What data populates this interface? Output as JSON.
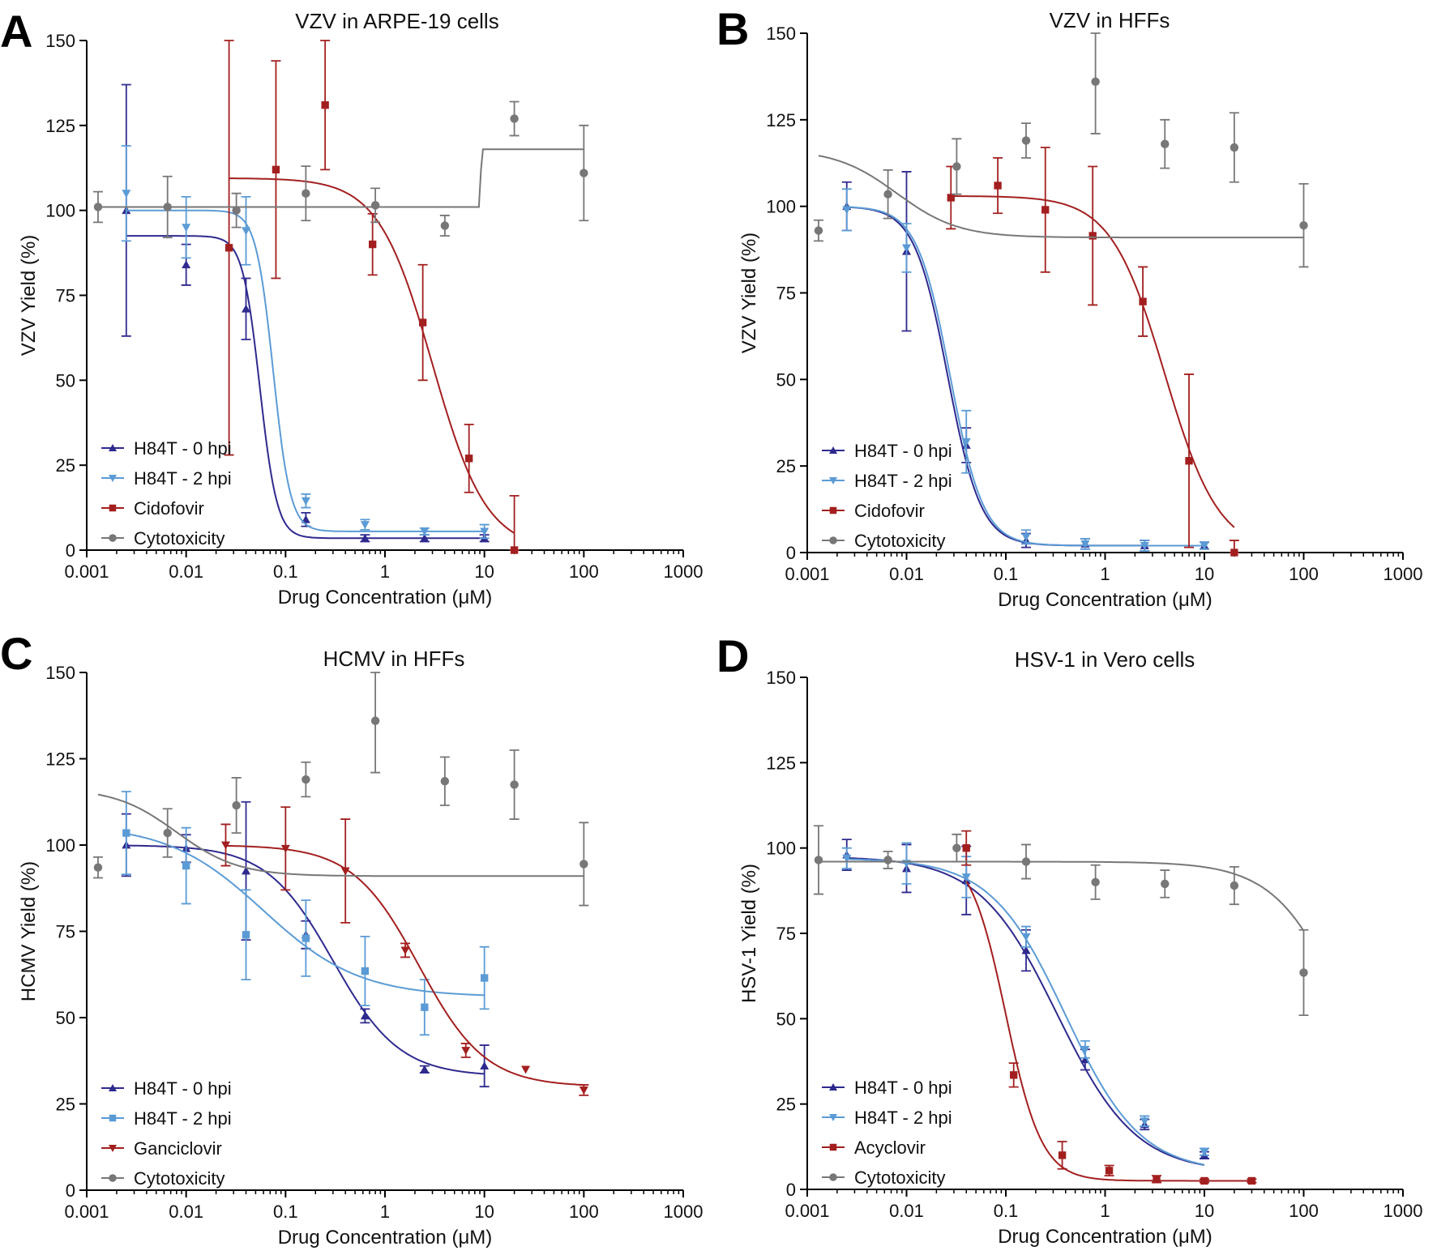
{
  "chart_data": [
    {
      "panel_label": "A",
      "type": "scatter",
      "title": "VZV in ARPE-19 cells",
      "xlabel": "Drug Concentration (μM)",
      "ylabel": "VZV Yield (%)",
      "xscale": "log",
      "xlim": [
        0.001,
        1000
      ],
      "ylim": [
        0,
        150
      ],
      "xticks": [
        0.001,
        0.01,
        0.1,
        1,
        10,
        100,
        1000
      ],
      "xtick_labels": [
        "0.001",
        "0.01",
        "0.1",
        "1",
        "10",
        "100",
        "1000"
      ],
      "yticks": [
        0,
        25,
        50,
        75,
        100,
        125,
        150
      ],
      "ytick_labels": [
        "0",
        "25",
        "50",
        "75",
        "100",
        "125",
        "150"
      ],
      "legend_position": "bottom-left",
      "series": [
        {
          "name": "H84T - 0 hpi",
          "color": "#2e2a8e",
          "marker": "triangle-up",
          "points": [
            [
              0.0025,
              100,
              37
            ],
            [
              0.01,
              84,
              6
            ],
            [
              0.04,
              71,
              9
            ],
            [
              0.16,
              9,
              2
            ],
            [
              0.63,
              3.5,
              1
            ],
            [
              2.5,
              3.5,
              1
            ],
            [
              10,
              3.5,
              1
            ]
          ],
          "curve": {
            "top": 92.5,
            "bottom": 3.5,
            "ec50": 0.055,
            "hill": 5,
            "from": 0.0025,
            "to": 10
          }
        },
        {
          "name": "H84T - 2 hpi",
          "color": "#5b9bd5",
          "marker": "triangle-down",
          "points": [
            [
              0.0025,
              105,
              14
            ],
            [
              0.01,
              95,
              9
            ],
            [
              0.04,
              94,
              10
            ],
            [
              0.16,
              14.5,
              2
            ],
            [
              0.63,
              7.5,
              1.5
            ],
            [
              2.5,
              5.5,
              1
            ],
            [
              10,
              5.5,
              2
            ]
          ],
          "curve": {
            "top": 100,
            "bottom": 5.5,
            "ec50": 0.075,
            "hill": 5,
            "from": 0.0025,
            "to": 10
          }
        },
        {
          "name": "Cidofovir",
          "color": "#a31f1f",
          "marker": "square",
          "points": [
            [
              0.027,
              89,
              61
            ],
            [
              0.08,
              112,
              32
            ],
            [
              0.25,
              131,
              19
            ],
            [
              0.75,
              90,
              9
            ],
            [
              2.4,
              67,
              17
            ],
            [
              7,
              27,
              10
            ],
            [
              20,
              0,
              16
            ]
          ],
          "curve": {
            "top": 109.5,
            "bottom": 0,
            "ec50": 3.0,
            "hill": 1.6,
            "from": 0.027,
            "to": 20
          }
        },
        {
          "name": "Cytotoxicity",
          "color": "#777777",
          "marker": "circle",
          "points": [
            [
              0.0013,
              101,
              4.5
            ],
            [
              0.0065,
              101,
              9
            ],
            [
              0.032,
              100,
              5
            ],
            [
              0.16,
              105,
              8
            ],
            [
              0.8,
              101.5,
              5
            ],
            [
              4,
              95.5,
              3
            ],
            [
              20,
              127,
              5
            ],
            [
              100,
              111,
              14
            ]
          ],
          "curve": {
            "type": "step",
            "low": 101,
            "high": 118,
            "rise_start": 8.8,
            "rise_end": 9.5,
            "from": 0.0013,
            "to": 100
          }
        }
      ]
    },
    {
      "panel_label": "B",
      "type": "scatter",
      "title": "VZV in HFFs",
      "xlabel": "Drug Concentration (μM)",
      "ylabel": "VZV Yield (%)",
      "xscale": "log",
      "xlim": [
        0.001,
        1000
      ],
      "ylim": [
        0,
        150
      ],
      "xticks": [
        0.001,
        0.01,
        0.1,
        1,
        10,
        100,
        1000
      ],
      "xtick_labels": [
        "0.001",
        "0.01",
        "0.1",
        "1",
        "10",
        "100",
        "1000"
      ],
      "yticks": [
        0,
        25,
        50,
        75,
        100,
        125,
        150
      ],
      "ytick_labels": [
        "0",
        "25",
        "50",
        "75",
        "100",
        "125",
        "150"
      ],
      "legend_position": "bottom-left",
      "series": [
        {
          "name": "H84T - 0 hpi",
          "color": "#2e2a8e",
          "marker": "triangle-up",
          "points": [
            [
              0.0025,
              100,
              7
            ],
            [
              0.01,
              87,
              23
            ],
            [
              0.04,
              31,
              5
            ],
            [
              0.16,
              3.5,
              2
            ],
            [
              0.63,
              2.5,
              1.5
            ],
            [
              2.5,
              2,
              1.5
            ],
            [
              10,
              2,
              1
            ]
          ],
          "curve": {
            "top": 100,
            "bottom": 2,
            "ec50": 0.026,
            "hill": 2.6,
            "from": 0.0025,
            "to": 10
          }
        },
        {
          "name": "H84T - 2 hpi",
          "color": "#5b9bd5",
          "marker": "triangle-down",
          "points": [
            [
              0.0025,
              99,
              6
            ],
            [
              0.01,
              88,
              7
            ],
            [
              0.04,
              32,
              9
            ],
            [
              0.16,
              4.5,
              2
            ],
            [
              0.63,
              2.5,
              1.5
            ],
            [
              2.5,
              2,
              1.5
            ],
            [
              10,
              2,
              1
            ]
          ],
          "curve": {
            "top": 100,
            "bottom": 2,
            "ec50": 0.0275,
            "hill": 2.6,
            "from": 0.0025,
            "to": 10
          }
        },
        {
          "name": "Cidofovir",
          "color": "#a31f1f",
          "marker": "square",
          "points": [
            [
              0.028,
              102.5,
              9
            ],
            [
              0.083,
              106,
              8
            ],
            [
              0.25,
              99,
              18
            ],
            [
              0.75,
              91.5,
              20
            ],
            [
              2.4,
              72.5,
              10
            ],
            [
              7,
              26.5,
              25
            ],
            [
              20,
              0,
              3.5
            ]
          ],
          "curve": {
            "top": 103,
            "bottom": 0,
            "ec50": 4.0,
            "hill": 1.6,
            "from": 0.028,
            "to": 20
          }
        },
        {
          "name": "Cytotoxicity",
          "color": "#777777",
          "marker": "circle",
          "points": [
            [
              0.0013,
              93,
              3
            ],
            [
              0.0065,
              103.5,
              7
            ],
            [
              0.032,
              111.5,
              8
            ],
            [
              0.16,
              119,
              5
            ],
            [
              0.8,
              136,
              15
            ],
            [
              4,
              118,
              7
            ],
            [
              20,
              117,
              10
            ],
            [
              100,
              94.5,
              12
            ]
          ],
          "curve": {
            "top": 116.5,
            "bottom": 91,
            "ec50": 0.008,
            "hill": 1.4,
            "from": 0.0013,
            "to": 100
          }
        }
      ]
    },
    {
      "panel_label": "C",
      "type": "scatter",
      "title": "HCMV in HFFs",
      "xlabel": "Drug Concentration (μM)",
      "ylabel": "HCMV Yield (%)",
      "xscale": "log",
      "xlim": [
        0.001,
        1000
      ],
      "ylim": [
        0,
        150
      ],
      "xticks": [
        0.001,
        0.01,
        0.1,
        1,
        10,
        100,
        1000
      ],
      "xtick_labels": [
        "0.001",
        "0.01",
        "0.1",
        "1",
        "10",
        "100",
        "1000"
      ],
      "yticks": [
        0,
        25,
        50,
        75,
        100,
        125,
        150
      ],
      "ytick_labels": [
        "0",
        "25",
        "50",
        "75",
        "100",
        "125",
        "150"
      ],
      "legend_position": "bottom-left",
      "series": [
        {
          "name": "H84T - 0 hpi",
          "color": "#2e2a8e",
          "marker": "triangle-up",
          "points": [
            [
              0.0025,
              100,
              9
            ],
            [
              0.01,
              99,
              4
            ],
            [
              0.04,
              92.5,
              20
            ],
            [
              0.16,
              74,
              4
            ],
            [
              0.63,
              50.5,
              2
            ],
            [
              2.5,
              35,
              1
            ],
            [
              10,
              36,
              6
            ]
          ],
          "curve": {
            "top": 100,
            "bottom": 33,
            "ec50": 0.3,
            "hill": 1.3,
            "from": 0.0025,
            "to": 10
          }
        },
        {
          "name": "H84T - 2 hpi",
          "color": "#5b9bd5",
          "marker": "square",
          "points": [
            [
              0.0025,
              103.5,
              12
            ],
            [
              0.01,
              94,
              11
            ],
            [
              0.04,
              74,
              13
            ],
            [
              0.16,
              73,
              11
            ],
            [
              0.63,
              63.5,
              10
            ],
            [
              2.5,
              53,
              8
            ],
            [
              10,
              61.5,
              9
            ]
          ],
          "curve": {
            "top": 106,
            "bottom": 56,
            "ec50": 0.06,
            "hill": 0.9,
            "from": 0.0025,
            "to": 10
          }
        },
        {
          "name": "Ganciclovir",
          "color": "#a31f1f",
          "marker": "triangle-down",
          "points": [
            [
              0.025,
              100,
              6
            ],
            [
              0.1,
              99,
              12
            ],
            [
              0.4,
              92.5,
              15
            ],
            [
              1.6,
              69.5,
              2
            ],
            [
              6.5,
              40.5,
              2
            ],
            [
              26,
              35,
              0
            ],
            [
              100,
              29,
              1.5
            ]
          ],
          "curve": {
            "top": 100,
            "bottom": 30,
            "ec50": 2.2,
            "hill": 1.3,
            "from": 0.025,
            "to": 100
          }
        },
        {
          "name": "Cytotoxicity",
          "color": "#777777",
          "marker": "circle",
          "points": [
            [
              0.0013,
              93.5,
              3
            ],
            [
              0.0065,
              103.5,
              7
            ],
            [
              0.032,
              111.5,
              8
            ],
            [
              0.16,
              119,
              5
            ],
            [
              0.8,
              136,
              15
            ],
            [
              4,
              118.5,
              7
            ],
            [
              20,
              117.5,
              10
            ],
            [
              100,
              94.5,
              12
            ]
          ],
          "curve": {
            "top": 116.5,
            "bottom": 91,
            "ec50": 0.008,
            "hill": 1.4,
            "from": 0.0013,
            "to": 100
          }
        }
      ]
    },
    {
      "panel_label": "D",
      "type": "scatter",
      "title": "HSV-1 in Vero cells",
      "xlabel": "Drug Concentration (μM)",
      "ylabel": "HSV-1 Yield (%)",
      "xscale": "log",
      "xlim": [
        0.001,
        1000
      ],
      "ylim": [
        0,
        150
      ],
      "xticks": [
        0.001,
        0.01,
        0.1,
        1,
        10,
        100,
        1000
      ],
      "xtick_labels": [
        "0.001",
        "0.01",
        "0.1",
        "1",
        "10",
        "100",
        "1000"
      ],
      "yticks": [
        0,
        25,
        50,
        75,
        100,
        125,
        150
      ],
      "ytick_labels": [
        "0",
        "25",
        "50",
        "75",
        "100",
        "125",
        "150"
      ],
      "legend_position": "bottom-left",
      "series": [
        {
          "name": "H84T - 0 hpi",
          "color": "#2e2a8e",
          "marker": "triangle-up",
          "points": [
            [
              0.0025,
              98,
              4.5
            ],
            [
              0.01,
              94,
              7
            ],
            [
              0.04,
              90.5,
              10
            ],
            [
              0.16,
              70,
              6
            ],
            [
              0.63,
              38,
              3
            ],
            [
              2.5,
              19,
              1.5
            ],
            [
              10,
              10,
              1
            ]
          ],
          "curve": {
            "top": 97.5,
            "bottom": 5,
            "ec50": 0.33,
            "hill": 1.1,
            "from": 0.0025,
            "to": 10
          }
        },
        {
          "name": "H84T - 2 hpi",
          "color": "#5b9bd5",
          "marker": "triangle-down",
          "points": [
            [
              0.0025,
              97,
              3
            ],
            [
              0.01,
              95.5,
              6
            ],
            [
              0.04,
              91.5,
              6
            ],
            [
              0.16,
              74,
              3
            ],
            [
              0.63,
              41,
              2.5
            ],
            [
              2.5,
              20,
              1.5
            ],
            [
              10,
              11,
              1
            ]
          ],
          "curve": {
            "top": 97,
            "bottom": 5,
            "ec50": 0.4,
            "hill": 1.15,
            "from": 0.0025,
            "to": 10
          }
        },
        {
          "name": "Acyclovir",
          "color": "#a31f1f",
          "marker": "square",
          "points": [
            [
              0.04,
              100,
              5
            ],
            [
              0.12,
              33.5,
              3.5
            ],
            [
              0.37,
              10,
              4
            ],
            [
              1.1,
              5.5,
              1.5
            ],
            [
              3.3,
              3,
              1
            ],
            [
              10,
              2.5,
              0.5
            ],
            [
              30,
              2.5,
              0.5
            ]
          ],
          "curve": {
            "top": 100,
            "bottom": 2.5,
            "ec50": 0.1,
            "hill": 2.4,
            "from": 0.04,
            "to": 30
          }
        },
        {
          "name": "Cytotoxicity",
          "color": "#777777",
          "marker": "circle",
          "points": [
            [
              0.0013,
              96.5,
              10
            ],
            [
              0.0065,
              96.5,
              2.5
            ],
            [
              0.032,
              100,
              4
            ],
            [
              0.16,
              96,
              5
            ],
            [
              0.8,
              90,
              5
            ],
            [
              4,
              89.5,
              4
            ],
            [
              20,
              89,
              5.5
            ],
            [
              100,
              63.5,
              12.5
            ]
          ],
          "curve": {
            "top": 96,
            "bottom": 0,
            "ec50": 300,
            "hill": 1.2,
            "from": 0.0013,
            "to": 100
          }
        }
      ]
    }
  ]
}
